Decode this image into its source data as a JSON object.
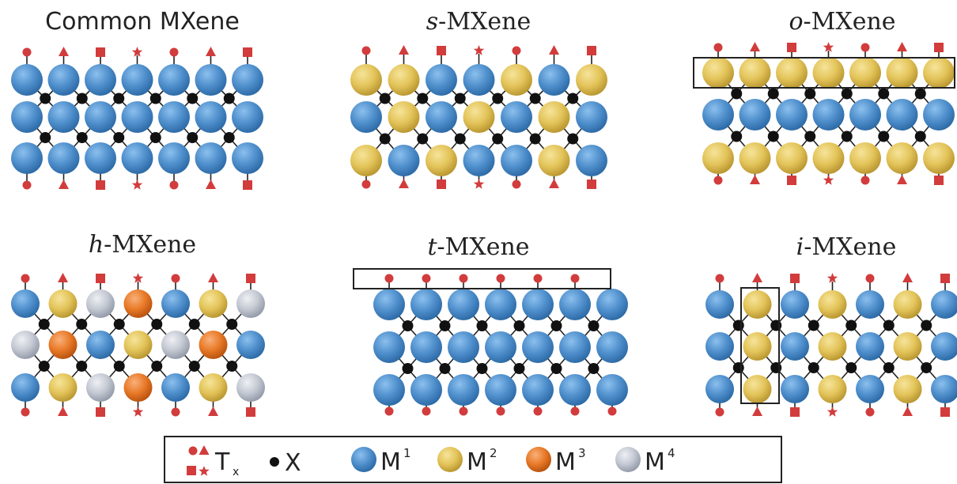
{
  "panels": [
    {
      "prefix": "",
      "label": "Common MXene",
      "plain": true
    },
    {
      "prefix": "s",
      "label": "-MXene"
    },
    {
      "prefix": "o",
      "label": "-MXene"
    },
    {
      "prefix": "h",
      "label": "-MXene"
    },
    {
      "prefix": "t",
      "label": "-MXene"
    },
    {
      "prefix": "i",
      "label": "-MXene"
    }
  ],
  "legend": {
    "tx_main": "T",
    "tx_sub": "x",
    "x_label": "X",
    "m_main": "M",
    "m1_sup": "1",
    "m2_sup": "2",
    "m3_sup": "3",
    "m4_sup": "4"
  },
  "colors": {
    "M1": "#4f8fcc",
    "M2": "#e3c45a",
    "M3": "#e87a28",
    "M4": "#c3c8d2",
    "X": "#111111",
    "Tx": "#d23c3c"
  },
  "icons": [
    "circle-terminal-icon",
    "triangle-terminal-icon",
    "square-terminal-icon",
    "star-terminal-icon",
    "x-atom-icon",
    "m-atom-icon"
  ]
}
